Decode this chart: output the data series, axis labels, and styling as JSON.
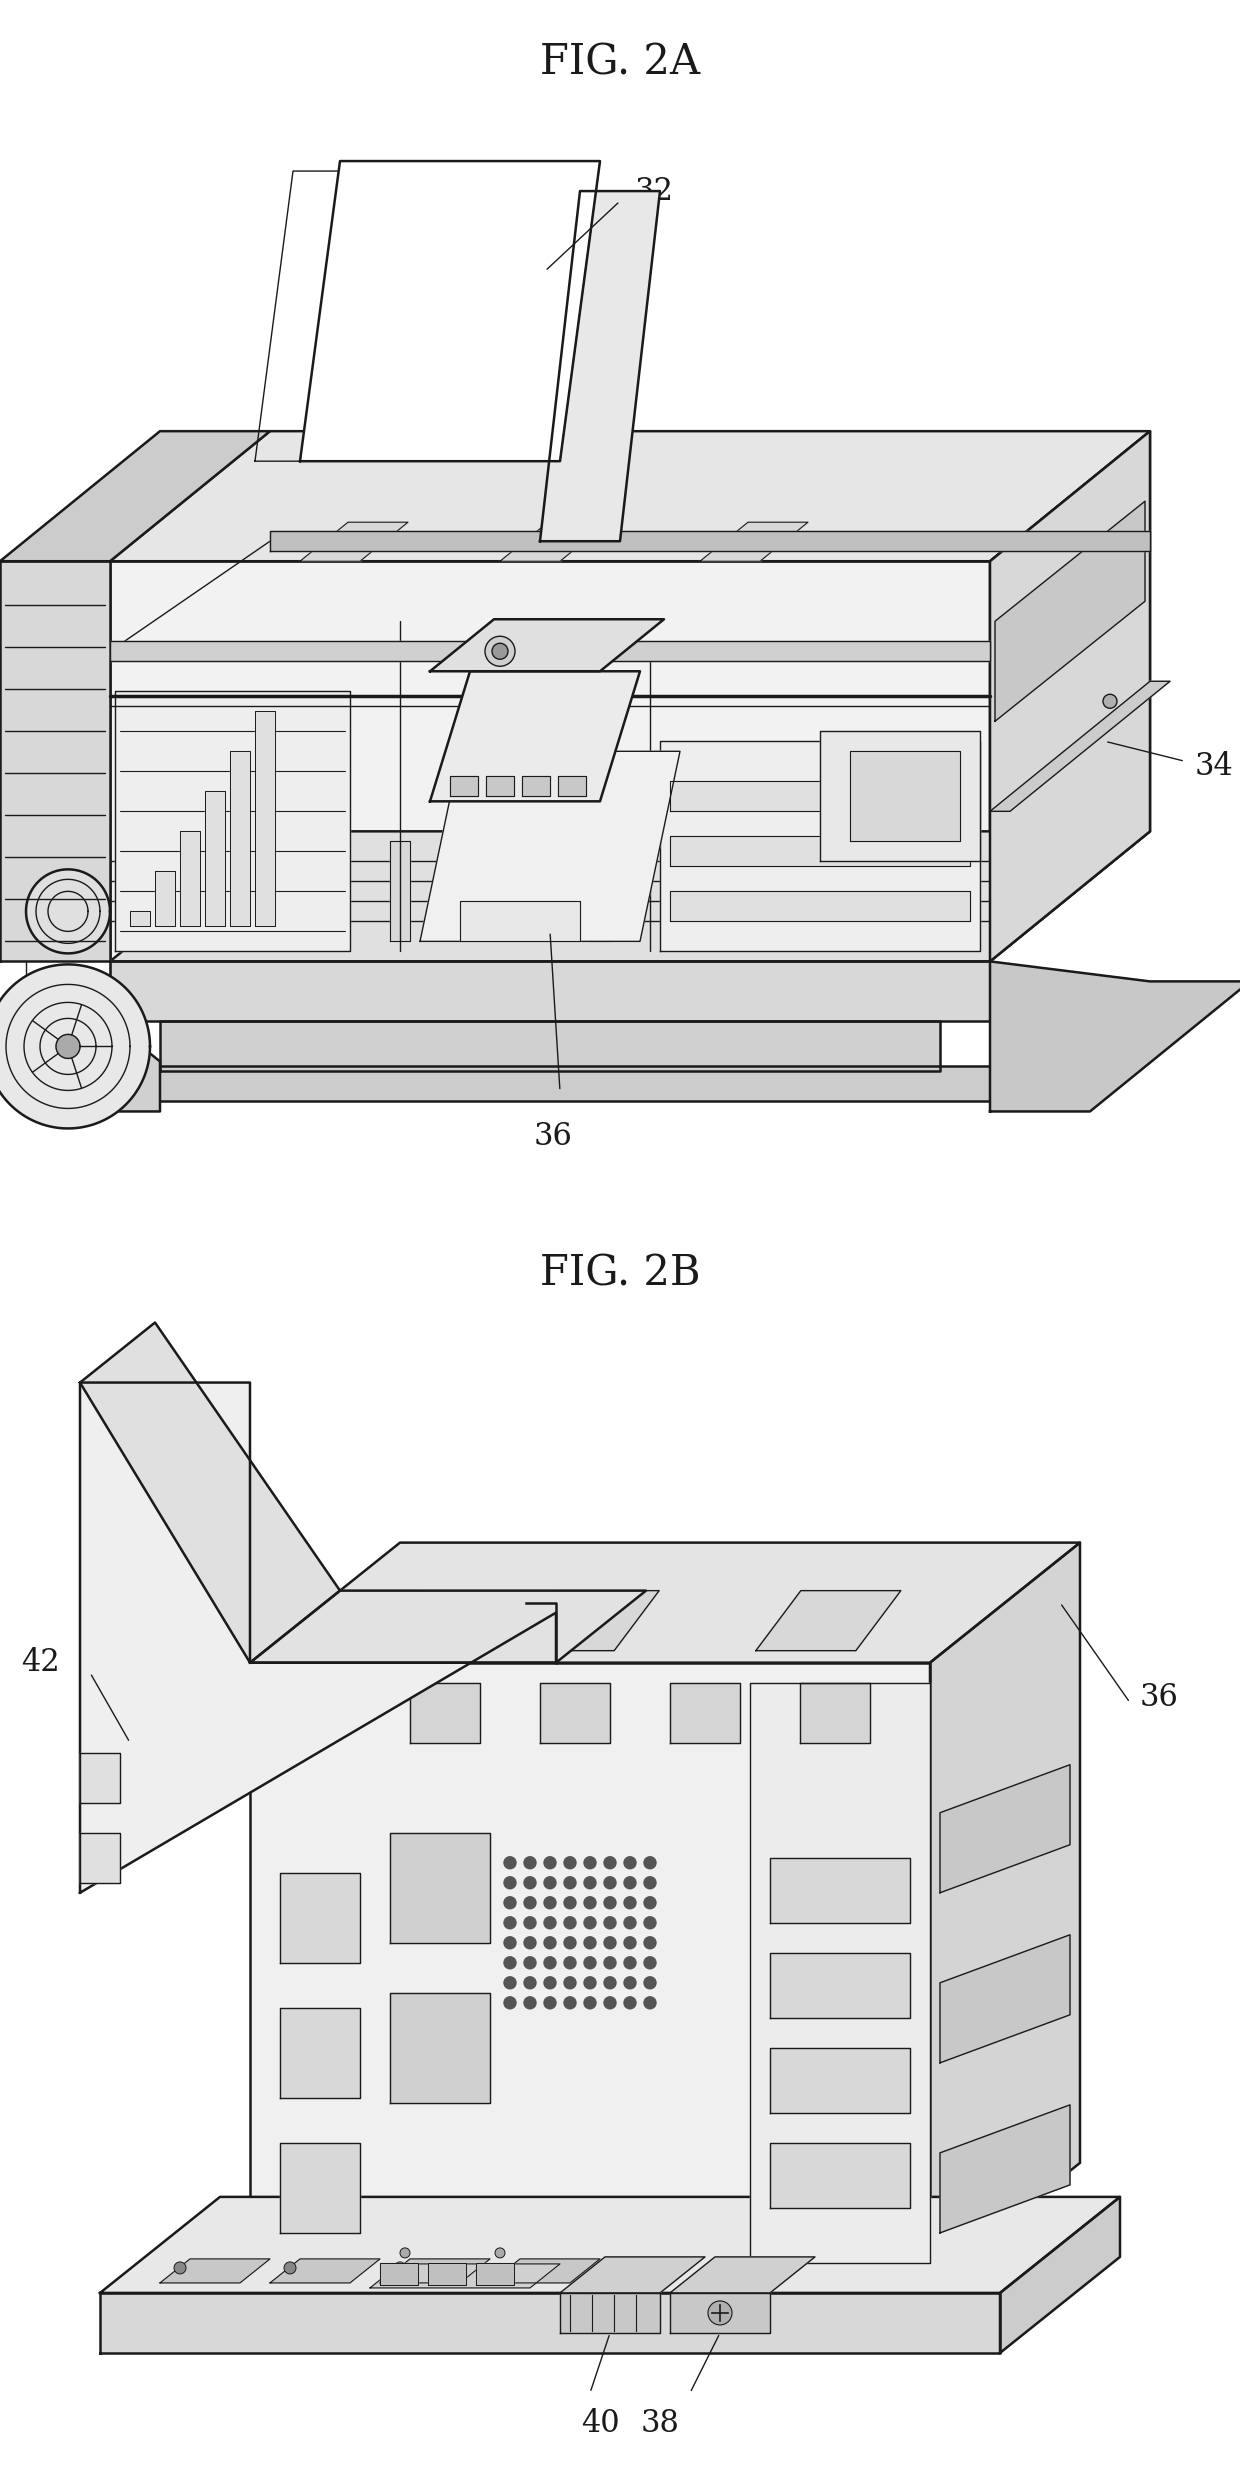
{
  "fig_title_2a": "FIG. 2A",
  "fig_title_2b": "FIG. 2B",
  "label_32": "32",
  "label_34": "34",
  "label_36_a": "36",
  "label_36_b": "36",
  "label_38": "38",
  "label_40": "40",
  "label_42": "42",
  "background_color": "#ffffff",
  "line_color": "#1a1a1a",
  "title_fontsize": 30,
  "label_fontsize": 22,
  "fig_width": 12.4,
  "fig_height": 24.83,
  "dpi": 100
}
